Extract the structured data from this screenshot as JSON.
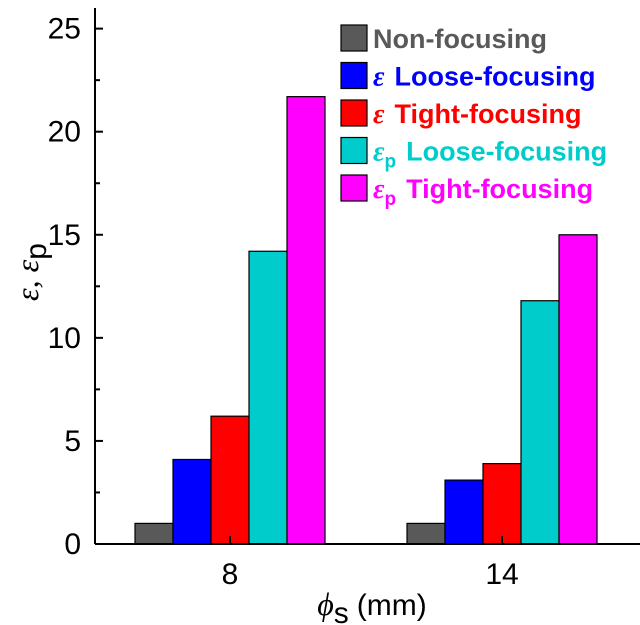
{
  "chart_data": {
    "type": "bar",
    "categories": [
      "8",
      "14"
    ],
    "series": [
      {
        "name": "Non-focusing",
        "symbol": "",
        "subscript": "",
        "label": "Non-focusing",
        "color": "#595959",
        "text_color": "#595959",
        "values": [
          1.0,
          1.0
        ]
      },
      {
        "name": "ε Loose-focusing",
        "symbol": "ε",
        "subscript": "",
        "label": "Loose-focusing",
        "color": "#0000ff",
        "text_color": "#0000ff",
        "values": [
          4.1,
          3.1
        ]
      },
      {
        "name": "ε Tight-focusing",
        "symbol": "ε",
        "subscript": "",
        "label": "Tight-focusing",
        "color": "#ff0000",
        "text_color": "#ff0000",
        "values": [
          6.2,
          3.9
        ]
      },
      {
        "name": "εp Loose-focusing",
        "symbol": "ε",
        "subscript": "p",
        "label": "Loose-focusing",
        "color": "#00cccc",
        "text_color": "#00cccc",
        "values": [
          14.2,
          11.8
        ]
      },
      {
        "name": "εp Tight-focusing",
        "symbol": "ε",
        "subscript": "p",
        "label": "Tight-focusing",
        "color": "#ff00ff",
        "text_color": "#ff00ff",
        "values": [
          21.7,
          15.0
        ]
      }
    ],
    "xlabel": {
      "symbol": "ϕ",
      "subscript": "s",
      "unit": "(mm)"
    },
    "ylabel": {
      "part1": "ε, ε",
      "subscript": "p"
    },
    "ylim": [
      0,
      26
    ],
    "yticks": [
      "0",
      "5",
      "10",
      "15",
      "20",
      "25"
    ],
    "legend": "top-right",
    "grid": false
  }
}
